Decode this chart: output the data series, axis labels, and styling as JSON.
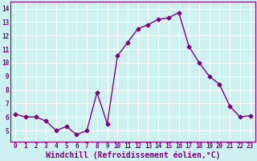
{
  "x": [
    0,
    1,
    2,
    3,
    4,
    5,
    6,
    7,
    8,
    9,
    10,
    11,
    12,
    13,
    14,
    15,
    16,
    17,
    18,
    19,
    20,
    21,
    22,
    23
  ],
  "y": [
    6.2,
    6.0,
    6.0,
    5.7,
    5.0,
    5.3,
    4.7,
    5.0,
    7.8,
    5.5,
    10.5,
    11.5,
    12.5,
    12.8,
    13.2,
    13.3,
    13.7,
    11.2,
    10.0,
    9.0,
    8.4,
    6.8,
    6.0,
    6.1
  ],
  "line_color": "#800080",
  "marker": "D",
  "marker_size": 2.5,
  "xlabel": "Windchill (Refroidissement éolien,°C)",
  "xlabel_color": "#800080",
  "ylim": [
    4.2,
    14.5
  ],
  "yticks": [
    5,
    6,
    7,
    8,
    9,
    10,
    11,
    12,
    13,
    14
  ],
  "xticks": [
    0,
    1,
    2,
    3,
    4,
    5,
    6,
    7,
    8,
    9,
    10,
    11,
    12,
    13,
    14,
    15,
    16,
    17,
    18,
    19,
    20,
    21,
    22,
    23
  ],
  "bg_color": "#cdf0f0",
  "grid_color": "#ffffff",
  "tick_label_color": "#800080",
  "tick_label_size": 5.5,
  "xlabel_size": 7.0,
  "xlabel_bold": true
}
